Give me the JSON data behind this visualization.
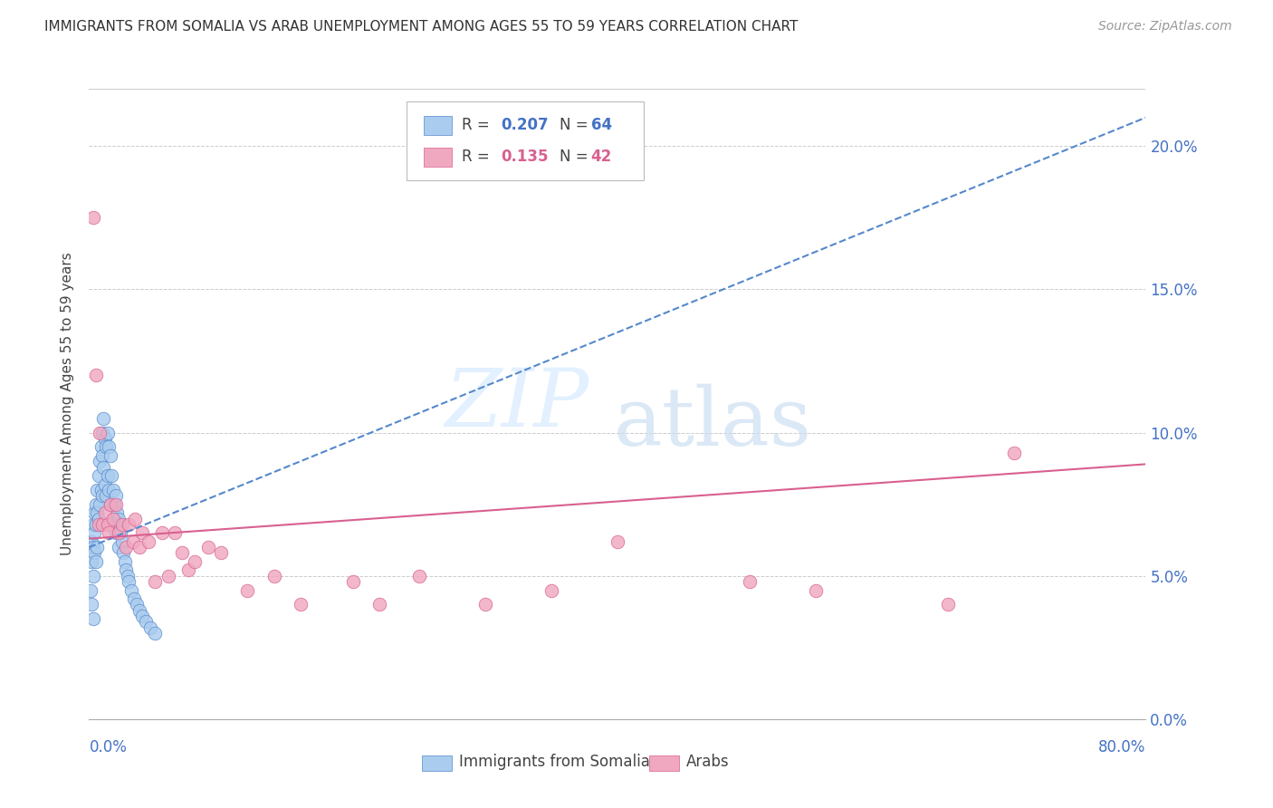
{
  "title": "IMMIGRANTS FROM SOMALIA VS ARAB UNEMPLOYMENT AMONG AGES 55 TO 59 YEARS CORRELATION CHART",
  "source": "Source: ZipAtlas.com",
  "ylabel": "Unemployment Among Ages 55 to 59 years",
  "yticks": [
    0.0,
    0.05,
    0.1,
    0.15,
    0.2
  ],
  "ytick_labels": [
    "0.0%",
    "5.0%",
    "10.0%",
    "15.0%",
    "20.0%"
  ],
  "xlim": [
    0.0,
    0.8
  ],
  "ylim": [
    0.0,
    0.22
  ],
  "somalia_color": "#aaccee",
  "somalia_edge": "#5588cc",
  "arab_color": "#f0a8c0",
  "arab_edge": "#d86090",
  "trend_somalia_color": "#5588cc",
  "trend_arab_color": "#d86090",
  "somalia_r": "0.207",
  "somalia_n": "64",
  "arab_r": "0.135",
  "arab_n": "42",
  "somalia_scatter_x": [
    0.001,
    0.001,
    0.002,
    0.002,
    0.002,
    0.003,
    0.003,
    0.003,
    0.003,
    0.004,
    0.004,
    0.004,
    0.005,
    0.005,
    0.005,
    0.006,
    0.006,
    0.006,
    0.007,
    0.007,
    0.008,
    0.008,
    0.009,
    0.009,
    0.01,
    0.01,
    0.01,
    0.011,
    0.011,
    0.012,
    0.012,
    0.013,
    0.013,
    0.014,
    0.014,
    0.015,
    0.015,
    0.016,
    0.016,
    0.017,
    0.018,
    0.018,
    0.019,
    0.02,
    0.02,
    0.021,
    0.022,
    0.022,
    0.023,
    0.024,
    0.025,
    0.026,
    0.027,
    0.028,
    0.029,
    0.03,
    0.032,
    0.034,
    0.036,
    0.038,
    0.04,
    0.043,
    0.046,
    0.05
  ],
  "somalia_scatter_y": [
    0.06,
    0.045,
    0.062,
    0.055,
    0.04,
    0.068,
    0.06,
    0.05,
    0.035,
    0.072,
    0.065,
    0.058,
    0.075,
    0.068,
    0.055,
    0.08,
    0.072,
    0.06,
    0.085,
    0.07,
    0.09,
    0.075,
    0.095,
    0.08,
    0.1,
    0.092,
    0.078,
    0.105,
    0.088,
    0.098,
    0.082,
    0.095,
    0.078,
    0.1,
    0.085,
    0.095,
    0.08,
    0.092,
    0.075,
    0.085,
    0.08,
    0.07,
    0.075,
    0.078,
    0.065,
    0.072,
    0.07,
    0.06,
    0.068,
    0.065,
    0.062,
    0.058,
    0.055,
    0.052,
    0.05,
    0.048,
    0.045,
    0.042,
    0.04,
    0.038,
    0.036,
    0.034,
    0.032,
    0.03
  ],
  "arab_scatter_x": [
    0.003,
    0.005,
    0.007,
    0.008,
    0.01,
    0.012,
    0.014,
    0.015,
    0.016,
    0.018,
    0.02,
    0.022,
    0.025,
    0.028,
    0.03,
    0.033,
    0.035,
    0.038,
    0.04,
    0.045,
    0.05,
    0.055,
    0.06,
    0.065,
    0.07,
    0.075,
    0.08,
    0.09,
    0.1,
    0.12,
    0.14,
    0.16,
    0.2,
    0.22,
    0.25,
    0.3,
    0.35,
    0.4,
    0.5,
    0.55,
    0.65,
    0.7
  ],
  "arab_scatter_y": [
    0.175,
    0.12,
    0.068,
    0.1,
    0.068,
    0.072,
    0.068,
    0.065,
    0.075,
    0.07,
    0.075,
    0.065,
    0.068,
    0.06,
    0.068,
    0.062,
    0.07,
    0.06,
    0.065,
    0.062,
    0.048,
    0.065,
    0.05,
    0.065,
    0.058,
    0.052,
    0.055,
    0.06,
    0.058,
    0.045,
    0.05,
    0.04,
    0.048,
    0.04,
    0.05,
    0.04,
    0.045,
    0.062,
    0.048,
    0.045,
    0.04,
    0.093
  ],
  "trend_somalia_x0": 0.0,
  "trend_somalia_x1": 0.8,
  "trend_somalia_y0": 0.06,
  "trend_somalia_y1": 0.21,
  "trend_arab_x0": 0.0,
  "trend_arab_x1": 0.8,
  "trend_arab_y0": 0.063,
  "trend_arab_y1": 0.089
}
